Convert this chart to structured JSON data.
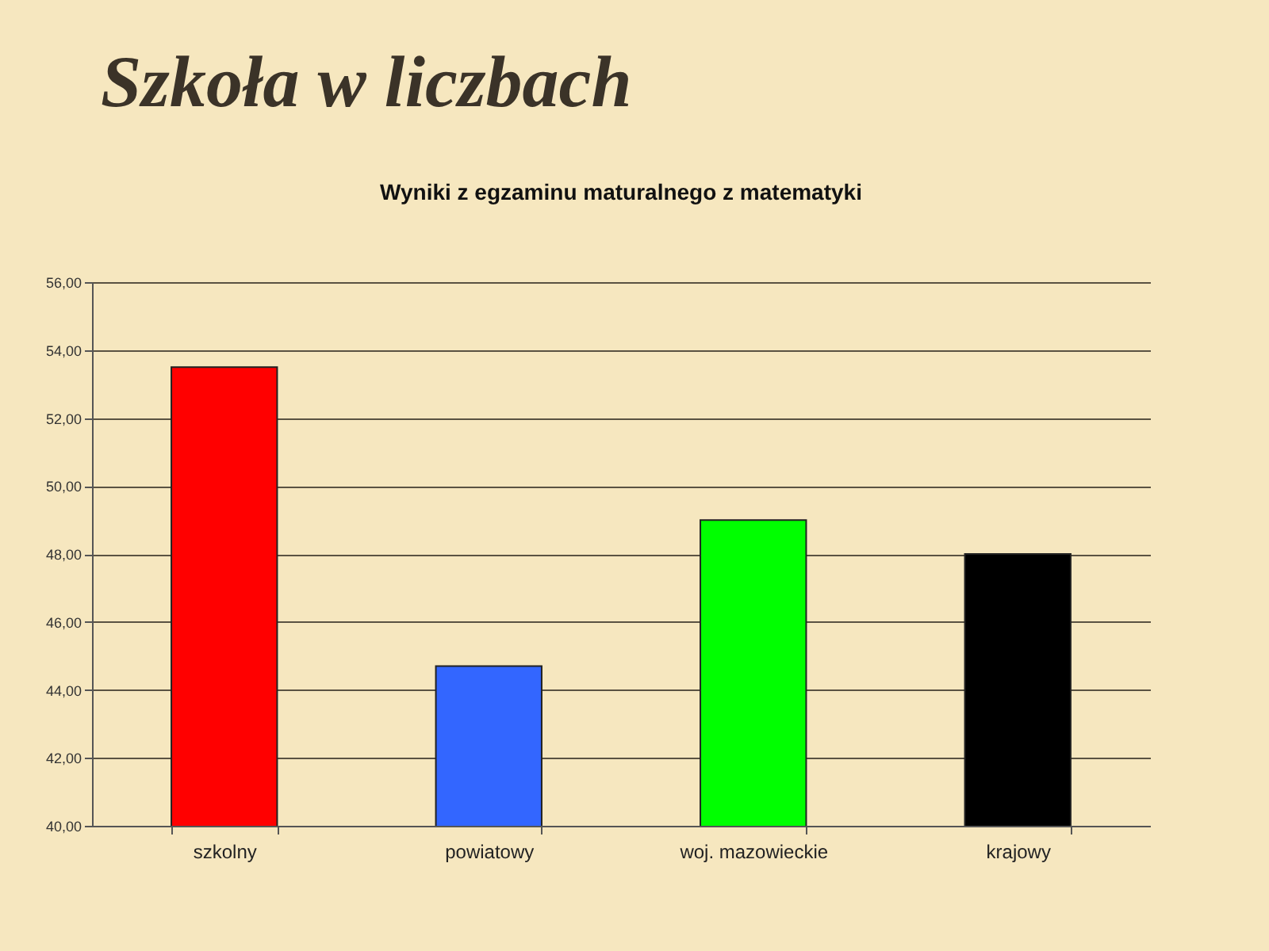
{
  "chart_data": {
    "type": "bar",
    "title": "Szkoła w liczbach",
    "subtitle": "Wyniki z egzaminu maturalnego z matematyki",
    "categories": [
      "szkolny",
      "powiatowy",
      "woj. mazowieckie",
      "krajowy"
    ],
    "values": [
      53.5,
      44.7,
      49.0,
      48.0
    ],
    "colors": [
      "#ff0000",
      "#3366ff",
      "#00ff00",
      "#000000"
    ],
    "ylim": [
      40,
      56
    ],
    "yticks": [
      {
        "value": 40,
        "label": "40,00"
      },
      {
        "value": 42,
        "label": "42,00"
      },
      {
        "value": 44,
        "label": "44,00"
      },
      {
        "value": 46,
        "label": "46,00"
      },
      {
        "value": 48,
        "label": "48,00"
      },
      {
        "value": 50,
        "label": "50,00"
      },
      {
        "value": 52,
        "label": "52,00"
      },
      {
        "value": 54,
        "label": "54,00"
      },
      {
        "value": 56,
        "label": "56,00"
      }
    ],
    "grid": "y"
  }
}
